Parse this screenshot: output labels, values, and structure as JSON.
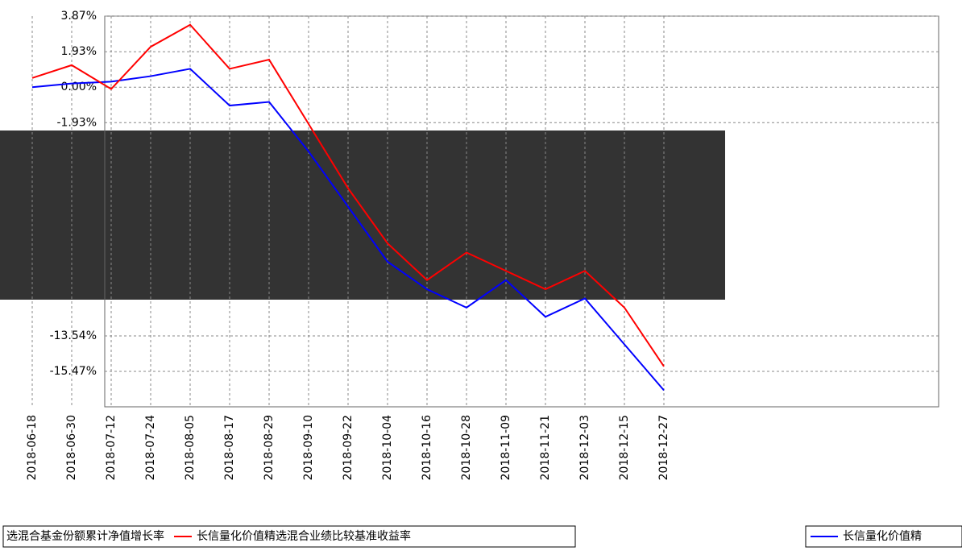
{
  "chart_data": {
    "type": "line",
    "x": [
      "2018-06-18",
      "2018-06-30",
      "2018-07-12",
      "2018-07-24",
      "2018-08-05",
      "2018-08-17",
      "2018-08-29",
      "2018-09-10",
      "2018-09-22",
      "2018-10-04",
      "2018-10-16",
      "2018-10-28",
      "2018-11-09",
      "2018-11-21",
      "2018-12-03",
      "2018-12-15",
      "2018-12-27"
    ],
    "series": [
      {
        "name": "选混合基金份额累计净值增长率",
        "color": "#0000ff",
        "values": [
          0.0,
          0.2,
          0.3,
          0.6,
          1.0,
          -1.0,
          -0.8,
          -3.5,
          -6.5,
          -9.5,
          -11.0,
          -12.0,
          -10.5,
          -12.5,
          -11.5,
          -14.0,
          -16.5
        ]
      },
      {
        "name": "长信量化价值精选混合业绩比较基准收益率",
        "color": "#ff0000",
        "values": [
          0.5,
          1.2,
          -0.1,
          2.2,
          3.4,
          1.0,
          1.5,
          -2.0,
          -5.5,
          -8.5,
          -10.5,
          -9.0,
          -10.0,
          -11.0,
          -10.0,
          -12.0,
          -15.2
        ]
      }
    ],
    "legend_extra": "长信量化价值精",
    "ylim": [
      -17.4,
      3.87
    ],
    "yticks": [
      {
        "value": 3.87,
        "label": "3.87%"
      },
      {
        "value": 1.93,
        "label": "1.93%"
      },
      {
        "value": 0,
        "label": "0.00%"
      },
      {
        "value": -1.93,
        "label": "-1.93%"
      },
      {
        "value": -13.54,
        "label": "-13.54%"
      },
      {
        "value": -15.47,
        "label": "-15.47%"
      }
    ],
    "grid": true
  }
}
